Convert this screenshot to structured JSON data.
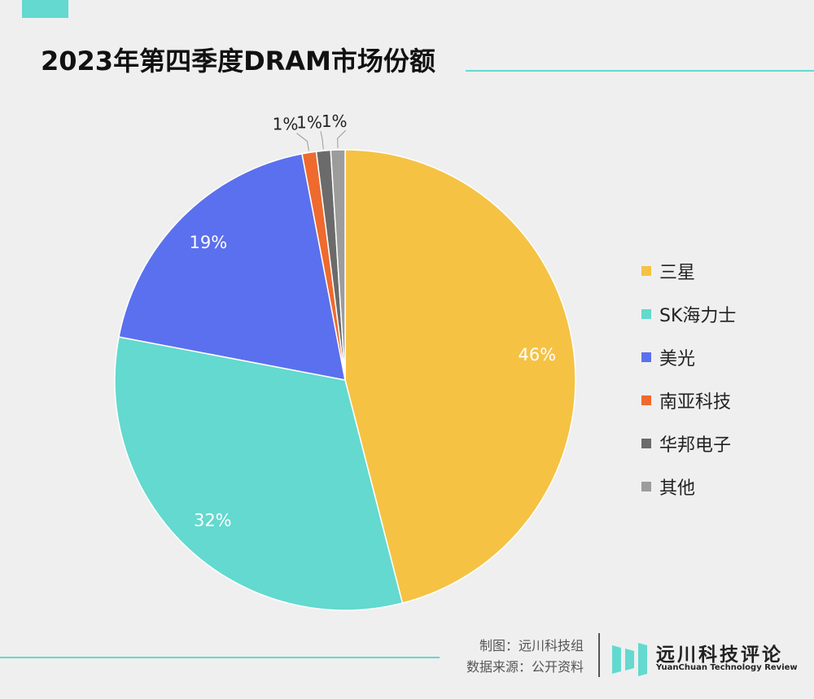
{
  "chart_data": {
    "type": "pie",
    "title": "2023年第四季度DRAM市场份额",
    "slices": [
      {
        "label": "三星",
        "value": 46,
        "display": "46%",
        "color": "#f5c244"
      },
      {
        "label": "SK海力士",
        "value": 32,
        "display": "32%",
        "color": "#63d9cf"
      },
      {
        "label": "美光",
        "value": 19,
        "display": "19%",
        "color": "#5b70ee"
      },
      {
        "label": "南亚科技",
        "value": 1,
        "display": "1%",
        "color": "#ef6a2e"
      },
      {
        "label": "华邦电子",
        "value": 1,
        "display": "1%",
        "color": "#6b6b6b"
      },
      {
        "label": "其他",
        "value": 1,
        "display": "1%",
        "color": "#9c9c9c"
      }
    ],
    "legend_position": "right"
  },
  "footer": {
    "credit_line1": "制图：远川科技组",
    "credit_line2": "数据来源：公开资料",
    "brand_name": "远川科技评论",
    "brand_sub": "YuanChuan Technology Review"
  },
  "colors": {
    "accent": "#63d9cf",
    "background": "#efefef"
  }
}
